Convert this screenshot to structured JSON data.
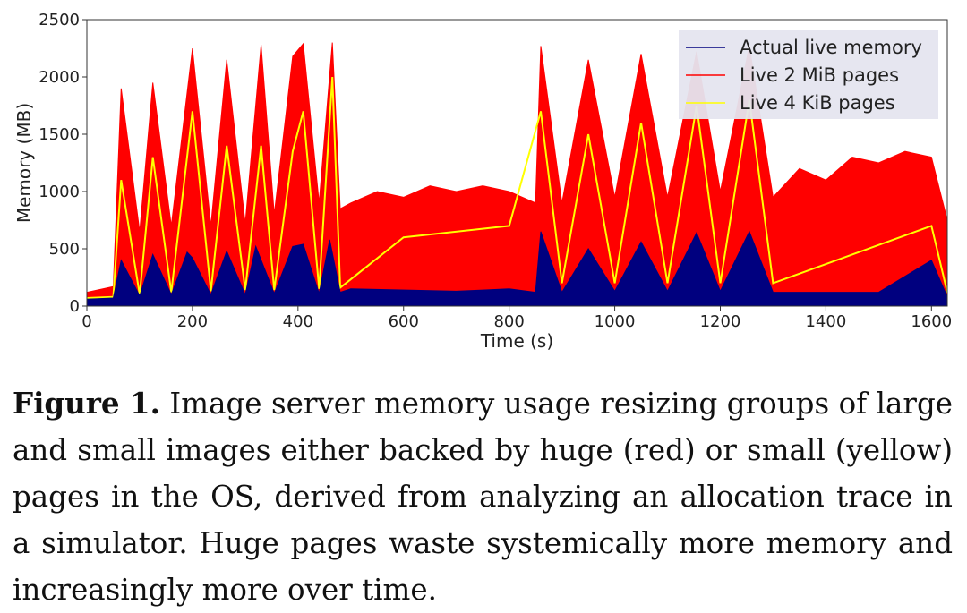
{
  "chart_data": {
    "type": "area",
    "title": "",
    "xlabel": "Time (s)",
    "ylabel": "Memory (MB)",
    "xlim": [
      0,
      1630
    ],
    "ylim": [
      0,
      2500
    ],
    "xticks": [
      0,
      200,
      400,
      600,
      800,
      1000,
      1200,
      1400,
      1600
    ],
    "yticks": [
      0,
      500,
      1000,
      1500,
      2000,
      2500
    ],
    "grid": false,
    "legend_position": "top-right",
    "series": [
      {
        "name": "Actual live memory",
        "color": "#00007f",
        "description_role": "baseline live memory",
        "x": [
          0,
          50,
          65,
          100,
          125,
          160,
          190,
          200,
          235,
          265,
          300,
          320,
          355,
          390,
          410,
          440,
          460,
          480,
          500,
          700,
          750,
          800,
          850,
          860,
          900,
          950,
          1000,
          1050,
          1100,
          1155,
          1200,
          1255,
          1300,
          1400,
          1500,
          1600,
          1630
        ],
        "values": [
          60,
          70,
          400,
          90,
          450,
          100,
          470,
          420,
          100,
          480,
          100,
          520,
          110,
          520,
          540,
          110,
          580,
          120,
          150,
          130,
          140,
          150,
          120,
          650,
          120,
          500,
          130,
          560,
          130,
          640,
          130,
          650,
          120,
          120,
          120,
          400,
          80
        ]
      },
      {
        "name": "Live 2 MiB pages",
        "color": "#ff0000",
        "x": [
          0,
          50,
          65,
          100,
          125,
          160,
          200,
          235,
          265,
          300,
          330,
          355,
          390,
          410,
          440,
          465,
          480,
          500,
          550,
          600,
          650,
          700,
          750,
          800,
          850,
          860,
          900,
          950,
          1000,
          1050,
          1100,
          1155,
          1200,
          1255,
          1300,
          1350,
          1400,
          1450,
          1500,
          1550,
          1600,
          1630
        ],
        "values": [
          120,
          170,
          1900,
          650,
          1950,
          700,
          2250,
          700,
          2150,
          720,
          2280,
          800,
          2180,
          2290,
          900,
          2300,
          850,
          900,
          1000,
          950,
          1050,
          1000,
          1050,
          1000,
          900,
          2270,
          900,
          2150,
          950,
          2200,
          950,
          2220,
          1000,
          2270,
          950,
          1200,
          1100,
          1300,
          1250,
          1350,
          1300,
          750
        ]
      },
      {
        "name": "Live 4 KiB pages",
        "color": "#ffff00",
        "x": [
          0,
          50,
          65,
          100,
          125,
          160,
          200,
          235,
          265,
          300,
          330,
          355,
          390,
          410,
          440,
          465,
          480,
          600,
          800,
          860,
          900,
          950,
          1000,
          1050,
          1100,
          1155,
          1200,
          1255,
          1300,
          1600,
          1630
        ],
        "values": [
          70,
          80,
          1100,
          100,
          1300,
          120,
          1700,
          130,
          1400,
          140,
          1400,
          140,
          1350,
          1700,
          150,
          2000,
          160,
          600,
          700,
          1700,
          200,
          1500,
          200,
          1600,
          200,
          1750,
          200,
          1800,
          200,
          700,
          120
        ]
      }
    ]
  },
  "caption": {
    "label": "Figure 1.",
    "text": "Image server memory usage resizing groups of large and small images either backed by huge (red) or small (yellow) pages in the OS, derived from analyzing an allocation trace in a simulator. Huge pages waste systemically more memory and increasingly more over time."
  }
}
